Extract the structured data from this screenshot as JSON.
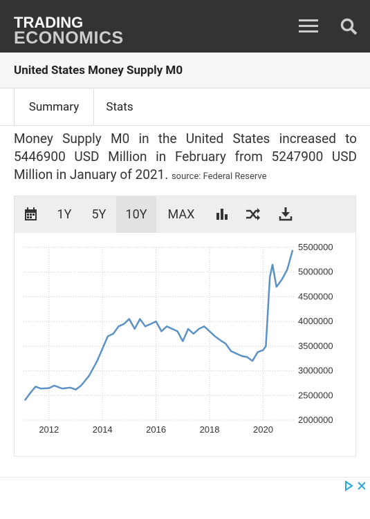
{
  "header": {
    "brand_top": "TRADING",
    "brand_bottom": "ECONOMICS"
  },
  "page_title": "United States Money Supply M0",
  "tabs": [
    "Summary",
    "Stats"
  ],
  "description": {
    "text": "Money Supply M0 in the United States increased to 5446900 USD Million in February from 5247900 USD Million in January of 2021.",
    "source": "source: Federal Reserve"
  },
  "toolbar": [
    "1Y",
    "5Y",
    "10Y",
    "MAX"
  ],
  "chart_data": {
    "type": "line",
    "color": "#5b92c3",
    "grid": true,
    "x": [
      2011.1,
      2011.3,
      2011.5,
      2011.7,
      2012.0,
      2012.2,
      2012.5,
      2012.8,
      2013.0,
      2013.2,
      2013.5,
      2013.8,
      2014.0,
      2014.2,
      2014.4,
      2014.6,
      2014.8,
      2015.0,
      2015.2,
      2015.4,
      2015.6,
      2015.8,
      2016.0,
      2016.2,
      2016.4,
      2016.6,
      2016.8,
      2017.0,
      2017.2,
      2017.4,
      2017.6,
      2017.8,
      2018.0,
      2018.2,
      2018.4,
      2018.6,
      2018.8,
      2019.0,
      2019.2,
      2019.4,
      2019.6,
      2019.8,
      2020.0,
      2020.1,
      2020.25,
      2020.35,
      2020.5,
      2020.7,
      2020.9,
      2021.0,
      2021.1
    ],
    "values": [
      2400000,
      2550000,
      2680000,
      2640000,
      2650000,
      2700000,
      2640000,
      2660000,
      2620000,
      2700000,
      2900000,
      3200000,
      3450000,
      3700000,
      3750000,
      3900000,
      3950000,
      4050000,
      3850000,
      4050000,
      3900000,
      3950000,
      4000000,
      3800000,
      3900000,
      3850000,
      3800000,
      3600000,
      3850000,
      3750000,
      3850000,
      3900000,
      3800000,
      3700000,
      3620000,
      3550000,
      3400000,
      3350000,
      3300000,
      3280000,
      3200000,
      3380000,
      3420000,
      3500000,
      4900000,
      5150000,
      4700000,
      4850000,
      5050000,
      5247900,
      5446900
    ],
    "xlim": [
      2011.05,
      2021.15
    ],
    "xticks": [
      2012,
      2014,
      2016,
      2018,
      2020
    ],
    "ylim": [
      2000000,
      5500000
    ],
    "yticks": [
      2000000,
      2500000,
      3000000,
      3500000,
      4000000,
      4500000,
      5000000,
      5500000
    ]
  }
}
